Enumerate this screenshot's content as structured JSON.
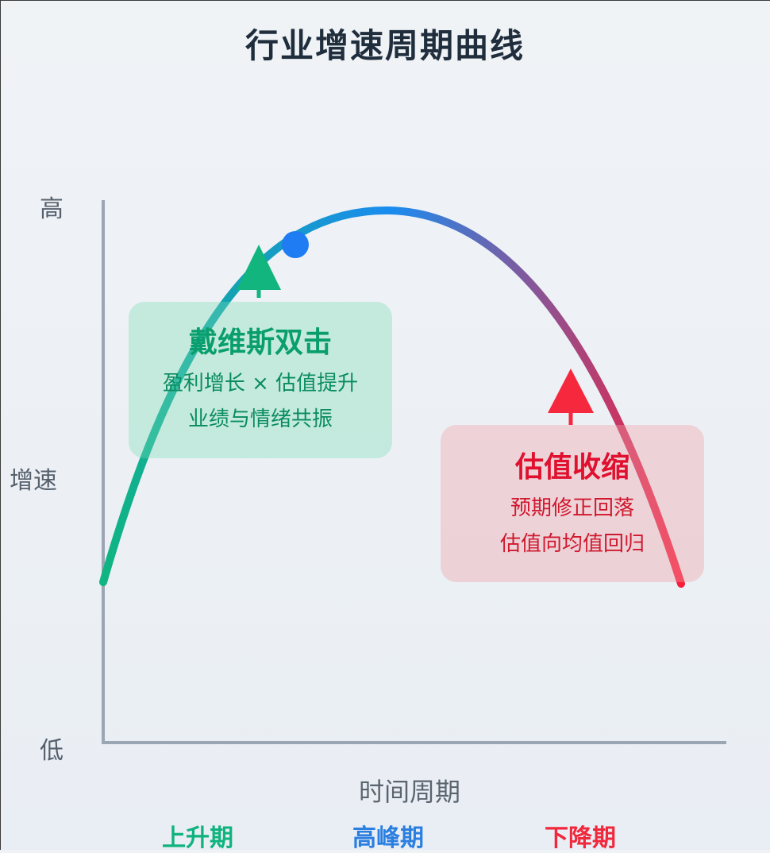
{
  "title": "行业增速周期曲线",
  "y_axis": {
    "top": "高",
    "middle": "增速",
    "bottom": "低"
  },
  "x_axis_title": "时间周期",
  "phases": [
    {
      "label": "上升期",
      "color": "#0fb37d"
    },
    {
      "label": "高峰期",
      "color": "#2a7fe0"
    },
    {
      "label": "下降期",
      "color": "#f0283c"
    }
  ],
  "curve_colors": {
    "start": "#10b581",
    "peak": "#1a8cf0",
    "end": "#f71e3c"
  },
  "peak_marker_color": "#1f7cf2",
  "callouts": {
    "rise": {
      "heading": "戴维斯双击",
      "lines": [
        "盈利增长 × 估值提升",
        "业绩与情绪共振"
      ],
      "color": "#0a9e6c",
      "bg": "rgba(120, 220, 180, 0.35)",
      "arrow_color": "#12b57e"
    },
    "fall": {
      "heading": "估值收缩",
      "lines": [
        "预期修正回落",
        "估值向均值回归"
      ],
      "color": "#e0102e",
      "bg": "rgba(240, 160, 165, 0.38)",
      "arrow_color": "#f5283e"
    }
  }
}
